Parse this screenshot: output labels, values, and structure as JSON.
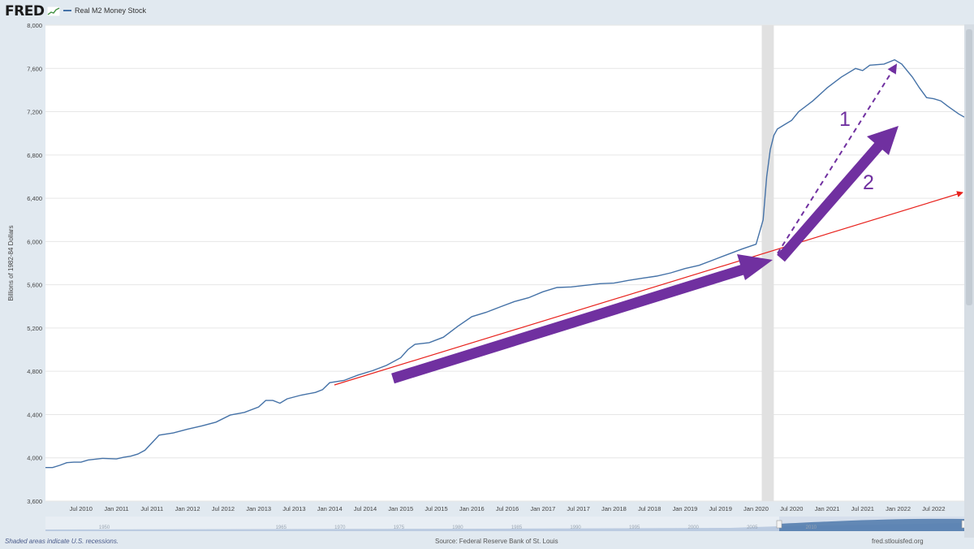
{
  "header": {
    "logo": "FRED",
    "legend_label": "Real M2 Money Stock"
  },
  "colors": {
    "series": "#4572a7",
    "recession": "#e1e1e1",
    "trend": "#e8221d",
    "arrow": "#7030a0"
  },
  "footer": {
    "recession_note": "Shaded areas indicate U.S. recessions.",
    "source": "Source: Federal Reserve Bank of St. Louis",
    "url": "fred.stlouisfed.org"
  },
  "annotations": {
    "label1": "1",
    "label2": "2"
  },
  "navigator": {
    "ticks": [
      {
        "year": 1950,
        "label": "1950"
      },
      {
        "year": 1965,
        "label": "1965"
      },
      {
        "year": 1970,
        "label": "1970"
      },
      {
        "year": 1975,
        "label": "1975"
      },
      {
        "year": 1980,
        "label": "1980"
      },
      {
        "year": 1985,
        "label": "1985"
      },
      {
        "year": 1990,
        "label": "1990"
      },
      {
        "year": 1995,
        "label": "1995"
      },
      {
        "year": 2000,
        "label": "2000"
      },
      {
        "year": 2005,
        "label": "2005"
      },
      {
        "year": 2010,
        "label": "2010"
      }
    ]
  },
  "chart_data": {
    "type": "line",
    "ylabel": "Billions of 1982-84 Dollars",
    "ylim": [
      3600,
      8000
    ],
    "xlim": [
      2010.0,
      2022.93
    ],
    "yticks": [
      3600,
      4000,
      4400,
      4800,
      5200,
      5600,
      6000,
      6400,
      6800,
      7200,
      7600,
      8000
    ],
    "ytick_labels": [
      "3,600",
      "4,000",
      "4,400",
      "4,800",
      "5,200",
      "5,600",
      "6,000",
      "6,400",
      "6,800",
      "7,200",
      "7,600",
      "8,000"
    ],
    "xticks": [
      {
        "x": 2010.5,
        "label": "Jul 2010"
      },
      {
        "x": 2011.0,
        "label": "Jan 2011"
      },
      {
        "x": 2011.5,
        "label": "Jul 2011"
      },
      {
        "x": 2012.0,
        "label": "Jan 2012"
      },
      {
        "x": 2012.5,
        "label": "Jul 2012"
      },
      {
        "x": 2013.0,
        "label": "Jan 2013"
      },
      {
        "x": 2013.5,
        "label": "Jul 2013"
      },
      {
        "x": 2014.0,
        "label": "Jan 2014"
      },
      {
        "x": 2014.5,
        "label": "Jul 2014"
      },
      {
        "x": 2015.0,
        "label": "Jan 2015"
      },
      {
        "x": 2015.5,
        "label": "Jul 2015"
      },
      {
        "x": 2016.0,
        "label": "Jan 2016"
      },
      {
        "x": 2016.5,
        "label": "Jul 2016"
      },
      {
        "x": 2017.0,
        "label": "Jan 2017"
      },
      {
        "x": 2017.5,
        "label": "Jul 2017"
      },
      {
        "x": 2018.0,
        "label": "Jan 2018"
      },
      {
        "x": 2018.5,
        "label": "Jul 2018"
      },
      {
        "x": 2019.0,
        "label": "Jan 2019"
      },
      {
        "x": 2019.5,
        "label": "Jul 2019"
      },
      {
        "x": 2020.0,
        "label": "Jan 2020"
      },
      {
        "x": 2020.5,
        "label": "Jul 2020"
      },
      {
        "x": 2021.0,
        "label": "Jan 2021"
      },
      {
        "x": 2021.5,
        "label": "Jul 2021"
      },
      {
        "x": 2022.0,
        "label": "Jan 2022"
      },
      {
        "x": 2022.5,
        "label": "Jul 2022"
      }
    ],
    "grid": true,
    "recession": [
      2020.08,
      2020.25
    ],
    "series": [
      {
        "x": [
          2010.0,
          2010.1,
          2010.2,
          2010.3,
          2010.4,
          2010.5,
          2010.6,
          2010.8,
          2011.0,
          2011.1,
          2011.2,
          2011.3,
          2011.4,
          2011.5,
          2011.6,
          2011.8,
          2012.0,
          2012.2,
          2012.4,
          2012.6,
          2012.8,
          2013.0,
          2013.1,
          2013.2,
          2013.3,
          2013.4,
          2013.6,
          2013.8,
          2013.9,
          2014.0,
          2014.2,
          2014.4,
          2014.6,
          2014.8,
          2015.0,
          2015.1,
          2015.2,
          2015.4,
          2015.6,
          2015.8,
          2016.0,
          2016.2,
          2016.4,
          2016.6,
          2016.8,
          2017.0,
          2017.2,
          2017.4,
          2017.6,
          2017.8,
          2018.0,
          2018.2,
          2018.4,
          2018.6,
          2018.8,
          2019.0,
          2019.2,
          2019.4,
          2019.6,
          2019.8,
          2020.0,
          2020.1,
          2020.15,
          2020.2,
          2020.25,
          2020.3,
          2020.4,
          2020.5,
          2020.6,
          2020.8,
          2021.0,
          2021.2,
          2021.4,
          2021.5,
          2021.6,
          2021.8,
          2021.95,
          2022.05,
          2022.2,
          2022.3,
          2022.4,
          2022.5,
          2022.6,
          2022.7,
          2022.85,
          2022.93
        ],
        "values": [
          3910,
          3910,
          3930,
          3955,
          3960,
          3960,
          3980,
          3995,
          3990,
          4005,
          4015,
          4035,
          4070,
          4140,
          4210,
          4230,
          4265,
          4295,
          4330,
          4395,
          4420,
          4470,
          4530,
          4530,
          4505,
          4545,
          4580,
          4605,
          4630,
          4695,
          4715,
          4765,
          4805,
          4855,
          4925,
          5000,
          5050,
          5065,
          5115,
          5215,
          5305,
          5345,
          5395,
          5445,
          5480,
          5535,
          5575,
          5580,
          5595,
          5610,
          5615,
          5640,
          5660,
          5680,
          5710,
          5750,
          5780,
          5830,
          5880,
          5930,
          5975,
          6200,
          6600,
          6850,
          6980,
          7040,
          7080,
          7120,
          7200,
          7300,
          7420,
          7520,
          7600,
          7580,
          7630,
          7640,
          7680,
          7640,
          7520,
          7420,
          7330,
          7320,
          7300,
          7250,
          7180,
          7150
        ]
      }
    ]
  }
}
